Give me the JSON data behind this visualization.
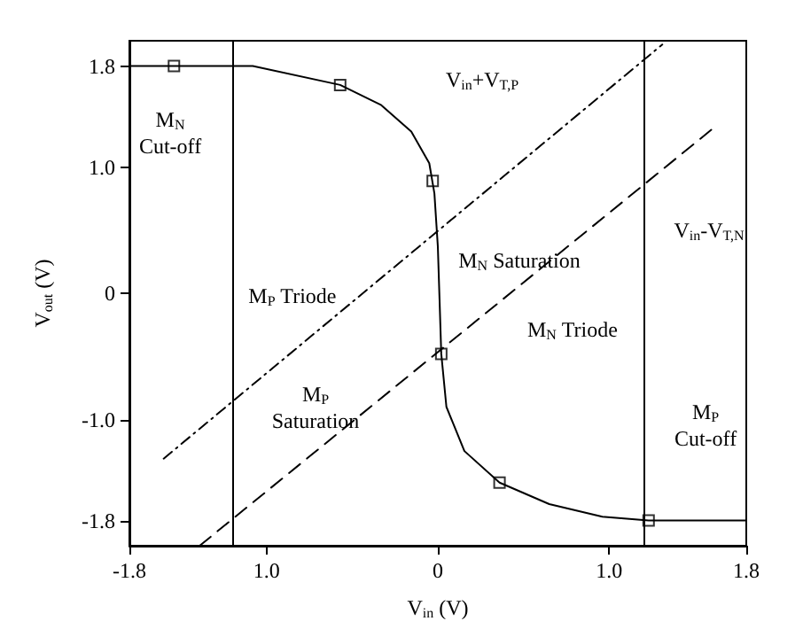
{
  "chart_data": {
    "type": "line",
    "xlabel": "V$_{in}$ (V)",
    "ylabel": "V$_{out}$ (V)",
    "xlim": [
      -1.8,
      1.8
    ],
    "ylim": [
      -2.0,
      2.0
    ],
    "xticks": [
      -1.8,
      {
        "value": -1.0,
        "label": "1.0"
      },
      0,
      {
        "value": 1.0,
        "label": "1.0"
      },
      1.8
    ],
    "yticks": [
      {
        "value": -1.8,
        "label": "-1.8"
      },
      {
        "value": -1.0,
        "label": "-1.0"
      },
      0,
      {
        "value": 1.0,
        "label": "1.0"
      },
      1.8
    ],
    "grid": false,
    "series": [
      {
        "type": "line",
        "color": "#000000",
        "marker": "none",
        "line_style": "solid",
        "x": [
          -1.8,
          -1.08,
          -0.57,
          -0.33,
          -0.155,
          -0.05,
          -0.02,
          0,
          0.01,
          0.02,
          0.05,
          0.155,
          0.36,
          0.65,
          0.96,
          1.23,
          1.8
        ],
        "values": [
          1.8,
          1.8,
          1.65,
          1.49,
          1.28,
          1.03,
          0.79,
          0.37,
          -0.05,
          -0.48,
          -0.9,
          -1.25,
          -1.5,
          -1.67,
          -1.77,
          -1.8,
          -1.8
        ]
      },
      {
        "type": "scatter",
        "color": "#000000",
        "marker": "square",
        "x": [
          -1.54,
          -0.57,
          -0.03,
          0.02,
          0.36,
          1.23
        ],
        "values": [
          1.8,
          1.65,
          0.89,
          -0.48,
          -1.5,
          -1.8
        ]
      },
      {
        "type": "line",
        "color": "#000000",
        "marker": "none",
        "line_style": "dotted",
        "x": [
          -1.6,
          1.31
        ],
        "values": [
          -1.31,
          1.97
        ]
      },
      {
        "type": "line",
        "color": "#000000",
        "marker": "none",
        "line_style": "dashed",
        "x": [
          -1.39,
          1.61
        ],
        "values": [
          -2.0,
          1.31
        ]
      }
    ],
    "ref_lines": [
      {
        "axis": "x",
        "value": -1.2,
        "color": "#000000",
        "line_style": "solid"
      },
      {
        "axis": "x",
        "value": 1.2,
        "color": "#000000",
        "line_style": "solid"
      }
    ],
    "annotations": [
      "M$_{N}$\nCut-off",
      "V$_{in}$+V$_{T,P}$",
      "V$_{in}$-V$_{T,N}$",
      "M$_{P}$ Triode",
      "M$_{N}$ Saturation",
      "M$_{N}$ Triode",
      "M$_{P}$\nSaturation",
      "M$_{P}$\nCut-off"
    ]
  }
}
